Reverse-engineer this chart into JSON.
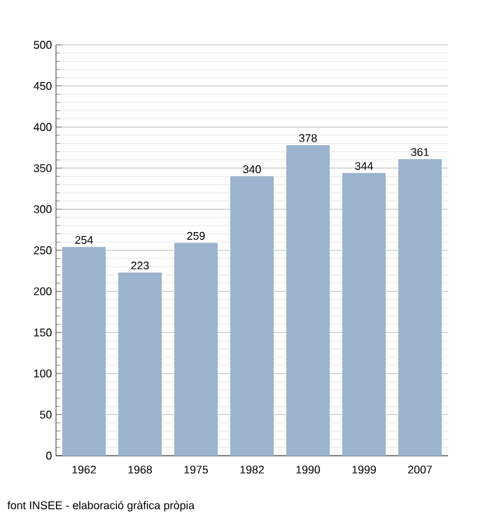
{
  "chart_data": {
    "type": "bar",
    "categories": [
      "1962",
      "1968",
      "1975",
      "1982",
      "1990",
      "1999",
      "2007"
    ],
    "values": [
      254,
      223,
      259,
      340,
      378,
      344,
      361
    ],
    "color": "#9bb3cd",
    "ylim": [
      0,
      500
    ],
    "yticks": [
      0,
      50,
      100,
      150,
      200,
      250,
      300,
      350,
      400,
      450,
      500
    ],
    "grid": "y",
    "data_labels": true,
    "annotations": [
      "font INSEE - elaboració gràfica pròpia"
    ]
  }
}
